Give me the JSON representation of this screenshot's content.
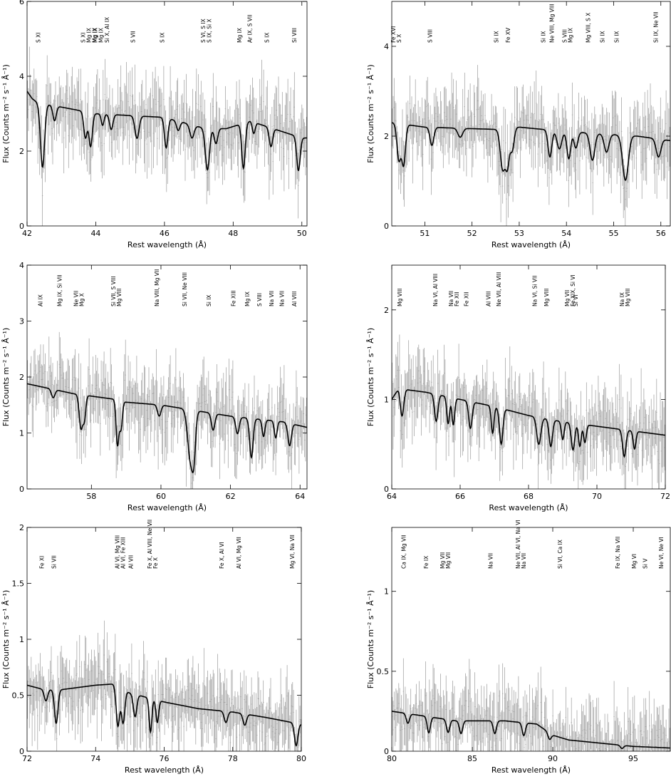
{
  "chart_data": [
    {
      "type": "line",
      "xlim": [
        42.0,
        50.15
      ],
      "ylim": [
        0,
        6
      ],
      "xticks": [
        42,
        44,
        46,
        48,
        50
      ],
      "yticks": [
        0,
        2,
        4,
        6
      ],
      "xlabel": "Rest wavelength (Å)",
      "ylabel": "Flux (Counts m⁻² s⁻¹ Å⁻¹)",
      "continuum": [
        [
          42.0,
          3.6
        ],
        [
          42.15,
          3.4
        ],
        [
          42.3,
          3.3
        ],
        [
          44.0,
          3.0
        ],
        [
          46.0,
          2.9
        ],
        [
          47.2,
          2.6
        ],
        [
          47.8,
          2.6
        ],
        [
          48.5,
          2.8
        ],
        [
          50.0,
          2.35
        ],
        [
          50.15,
          2.35
        ]
      ],
      "absorptions": [
        [
          42.45,
          1.7,
          0.06
        ],
        [
          42.8,
          0.4,
          0.05
        ],
        [
          43.7,
          0.7,
          0.05
        ],
        [
          43.85,
          0.9,
          0.05
        ],
        [
          44.2,
          0.3,
          0.04
        ],
        [
          44.45,
          0.4,
          0.05
        ],
        [
          45.2,
          0.6,
          0.06
        ],
        [
          46.05,
          0.8,
          0.05
        ],
        [
          46.4,
          0.25,
          0.05
        ],
        [
          46.8,
          0.35,
          0.06
        ],
        [
          47.25,
          1.1,
          0.06
        ],
        [
          47.5,
          0.4,
          0.05
        ],
        [
          48.3,
          1.2,
          0.05
        ],
        [
          48.6,
          0.3,
          0.04
        ],
        [
          49.1,
          0.5,
          0.05
        ],
        [
          49.9,
          0.9,
          0.05
        ]
      ],
      "noise_seed": 11,
      "data_point_count": 300,
      "labels": [
        {
          "x": 42.45,
          "lines": [
            "S XI"
          ]
        },
        {
          "x": 43.75,
          "lines": [
            "S XI"
          ]
        },
        {
          "x": 43.92,
          "lines": [
            "Mg IX",
            "Mg IX"
          ]
        },
        {
          "x": 44.1,
          "lines": [
            "Mg IX",
            "Mg IX"
          ]
        },
        {
          "x": 44.45,
          "lines": [
            "Si X, Al IX"
          ]
        },
        {
          "x": 45.2,
          "lines": [
            "S VII"
          ]
        },
        {
          "x": 46.05,
          "lines": [
            "S IX"
          ]
        },
        {
          "x": 47.25,
          "lines": [
            "S VI, S IX"
          ]
        },
        {
          "x": 47.42,
          "lines": [
            "S IX, Si X"
          ]
        },
        {
          "x": 48.3,
          "lines": [
            "Mg IX"
          ]
        },
        {
          "x": 48.6,
          "lines": [
            "Ar IX, S VII"
          ]
        },
        {
          "x": 49.1,
          "lines": [
            "S IX"
          ]
        },
        {
          "x": 49.9,
          "lines": [
            "Si VIII"
          ]
        }
      ]
    },
    {
      "type": "line",
      "xlim": [
        50.3,
        56.2
      ],
      "ylim": [
        0,
        5
      ],
      "xticks": [
        51,
        52,
        53,
        54,
        55,
        56
      ],
      "yticks": [
        0,
        2,
        4
      ],
      "xlabel": "Rest wavelength (Å)",
      "ylabel": "Flux (Counts m⁻² s⁻¹ Å⁻¹)",
      "continuum": [
        [
          50.3,
          2.3
        ],
        [
          51.0,
          2.2
        ],
        [
          52.5,
          2.15
        ],
        [
          53.0,
          2.2
        ],
        [
          54.0,
          2.1
        ],
        [
          55.5,
          2.0
        ],
        [
          56.2,
          1.9
        ]
      ],
      "absorptions": [
        [
          50.45,
          0.8,
          0.04
        ],
        [
          50.55,
          0.9,
          0.04
        ],
        [
          51.15,
          0.4,
          0.04
        ],
        [
          51.75,
          0.2,
          0.05
        ],
        [
          52.65,
          0.9,
          0.05
        ],
        [
          52.75,
          0.8,
          0.04
        ],
        [
          52.85,
          0.5,
          0.04
        ],
        [
          53.65,
          0.6,
          0.04
        ],
        [
          53.85,
          0.4,
          0.05
        ],
        [
          54.05,
          0.6,
          0.04
        ],
        [
          54.2,
          0.35,
          0.04
        ],
        [
          54.55,
          0.6,
          0.05
        ],
        [
          54.85,
          0.4,
          0.05
        ],
        [
          55.25,
          1.0,
          0.06
        ],
        [
          55.95,
          0.4,
          0.05
        ]
      ],
      "noise_seed": 23,
      "data_point_count": 300,
      "labels": [
        {
          "x": 50.42,
          "lines": [
            "Fe XVI",
            "S X"
          ]
        },
        {
          "x": 51.2,
          "lines": [
            "S VIII"
          ]
        },
        {
          "x": 52.6,
          "lines": [
            "Si IX"
          ]
        },
        {
          "x": 52.85,
          "lines": [
            "Fe XV"
          ]
        },
        {
          "x": 53.6,
          "lines": [
            "Si IX"
          ]
        },
        {
          "x": 53.78,
          "lines": [
            "Ne VIII, Mg VIII"
          ]
        },
        {
          "x": 54.05,
          "lines": [
            "S VIII",
            "Mg IX"
          ]
        },
        {
          "x": 54.55,
          "lines": [
            "Mg VIII, S X"
          ]
        },
        {
          "x": 54.85,
          "lines": [
            "Si IX"
          ]
        },
        {
          "x": 55.15,
          "lines": [
            "Si IX"
          ]
        },
        {
          "x": 55.98,
          "lines": [
            "Si IX, Ne VII"
          ]
        }
      ]
    },
    {
      "type": "line",
      "xlim": [
        56.15,
        64.2
      ],
      "ylim": [
        0,
        4
      ],
      "xticks": [
        58,
        60,
        62,
        64
      ],
      "yticks": [
        0,
        1,
        2,
        3,
        4
      ],
      "xlabel": "Rest wavelength (Å)",
      "ylabel": "Flux (Counts m⁻² s⁻¹ Å⁻¹)",
      "continuum": [
        [
          56.15,
          1.88
        ],
        [
          57.5,
          1.7
        ],
        [
          58.7,
          1.6
        ],
        [
          59.0,
          1.55
        ],
        [
          60.0,
          1.5
        ],
        [
          61.0,
          1.4
        ],
        [
          62.0,
          1.3
        ],
        [
          63.5,
          1.2
        ],
        [
          64.2,
          1.1
        ]
      ],
      "absorptions": [
        [
          56.9,
          0.15,
          0.05
        ],
        [
          57.7,
          0.6,
          0.05
        ],
        [
          57.8,
          0.4,
          0.04
        ],
        [
          58.75,
          0.8,
          0.04
        ],
        [
          58.85,
          0.5,
          0.04
        ],
        [
          59.95,
          0.2,
          0.05
        ],
        [
          60.85,
          0.9,
          0.08
        ],
        [
          60.95,
          0.6,
          0.05
        ],
        [
          61.5,
          0.3,
          0.05
        ],
        [
          62.2,
          0.3,
          0.05
        ],
        [
          62.6,
          0.7,
          0.05
        ],
        [
          62.95,
          0.3,
          0.04
        ],
        [
          63.3,
          0.3,
          0.04
        ],
        [
          63.7,
          0.4,
          0.05
        ]
      ],
      "noise_seed": 37,
      "data_point_count": 300,
      "labels": [
        {
          "x": 56.65,
          "lines": [
            "Al IX"
          ]
        },
        {
          "x": 57.2,
          "lines": [
            "Mg IX, Si VII"
          ]
        },
        {
          "x": 57.68,
          "lines": [
            "Ne VII",
            "Mg X"
          ]
        },
        {
          "x": 58.75,
          "lines": [
            "Si VII, S VIII",
            "Mg VIII"
          ]
        },
        {
          "x": 60.0,
          "lines": [
            "Na VIII, Mg VII"
          ]
        },
        {
          "x": 60.8,
          "lines": [
            "Si VII, Ne VIII"
          ]
        },
        {
          "x": 61.5,
          "lines": [
            "Si IX"
          ]
        },
        {
          "x": 62.2,
          "lines": [
            "Fe XIII"
          ]
        },
        {
          "x": 62.6,
          "lines": [
            "Mg IX"
          ]
        },
        {
          "x": 62.95,
          "lines": [
            "S VIII"
          ]
        },
        {
          "x": 63.3,
          "lines": [
            "Na VII"
          ]
        },
        {
          "x": 63.6,
          "lines": [
            "Na VII"
          ]
        },
        {
          "x": 63.95,
          "lines": [
            "Al VIII"
          ]
        }
      ]
    },
    {
      "type": "line",
      "xlim": [
        64.0,
        72.0
      ],
      "ylim": [
        0,
        2.5
      ],
      "xticks": [
        64,
        66,
        68,
        70,
        72
      ],
      "yticks": [
        0,
        1,
        2
      ],
      "xlabel": "Rest wavelength (Å)",
      "ylabel": "Flux (Counts m⁻² s⁻¹ Å⁻¹)",
      "continuum": [
        [
          64.0,
          1.0
        ],
        [
          64.2,
          1.12
        ],
        [
          65.0,
          1.08
        ],
        [
          66.0,
          1.0
        ],
        [
          67.0,
          0.92
        ],
        [
          68.0,
          0.82
        ],
        [
          69.0,
          0.75
        ],
        [
          70.0,
          0.7
        ],
        [
          71.0,
          0.65
        ],
        [
          72.0,
          0.6
        ]
      ],
      "absorptions": [
        [
          64.3,
          0.3,
          0.05
        ],
        [
          65.3,
          0.3,
          0.05
        ],
        [
          65.65,
          0.3,
          0.04
        ],
        [
          65.8,
          0.3,
          0.04
        ],
        [
          66.3,
          0.3,
          0.05
        ],
        [
          66.95,
          0.3,
          0.04
        ],
        [
          67.2,
          0.4,
          0.05
        ],
        [
          68.3,
          0.3,
          0.06
        ],
        [
          68.65,
          0.3,
          0.05
        ],
        [
          69.0,
          0.2,
          0.04
        ],
        [
          69.3,
          0.3,
          0.05
        ],
        [
          69.5,
          0.25,
          0.04
        ],
        [
          69.65,
          0.2,
          0.04
        ],
        [
          70.8,
          0.3,
          0.05
        ],
        [
          71.1,
          0.2,
          0.04
        ]
      ],
      "noise_seed": 41,
      "data_point_count": 300,
      "labels": [
        {
          "x": 64.35,
          "lines": [
            "Mg VIII"
          ]
        },
        {
          "x": 65.4,
          "lines": [
            "Na VI, Al VIII"
          ]
        },
        {
          "x": 65.85,
          "lines": [
            "Na VII",
            "Fe XII"
          ]
        },
        {
          "x": 66.3,
          "lines": [
            "Fe XII"
          ]
        },
        {
          "x": 66.95,
          "lines": [
            "Al VIII"
          ]
        },
        {
          "x": 67.25,
          "lines": [
            "Ne VII, Al VIII"
          ]
        },
        {
          "x": 68.3,
          "lines": [
            "Na VI, Si VII"
          ]
        },
        {
          "x": 68.65,
          "lines": [
            "Mg VIII"
          ]
        },
        {
          "x": 69.25,
          "lines": [
            "Mg VII",
            "Fe XIX, Si VI"
          ]
        },
        {
          "x": 69.5,
          "lines": [
            "Si VI"
          ]
        },
        {
          "x": 70.85,
          "lines": [
            "Na IX",
            "Mg VIII"
          ]
        }
      ]
    },
    {
      "type": "line",
      "xlim": [
        72.0,
        80.0
      ],
      "ylim": [
        0,
        2
      ],
      "xticks": [
        72,
        74,
        76,
        78,
        80
      ],
      "yticks": [
        0,
        0.5,
        1,
        1.5,
        2
      ],
      "xtick_labels": [
        "72",
        "74",
        "76",
        "78",
        "80"
      ],
      "ytick_labels": [
        "0",
        "0.5",
        "1",
        "1.5",
        "2"
      ],
      "xlabel": "Rest wavelength (Å)",
      "ylabel": "Flux (Counts m⁻² s⁻¹ Å⁻¹)",
      "continuum": [
        [
          72.0,
          0.59
        ],
        [
          72.5,
          0.55
        ],
        [
          73.0,
          0.55
        ],
        [
          74.0,
          0.59
        ],
        [
          74.5,
          0.6
        ],
        [
          75.0,
          0.52
        ],
        [
          75.5,
          0.48
        ],
        [
          76.0,
          0.44
        ],
        [
          77.0,
          0.38
        ],
        [
          78.0,
          0.35
        ],
        [
          79.0,
          0.3
        ],
        [
          80.0,
          0.24
        ]
      ],
      "absorptions": [
        [
          72.55,
          0.1,
          0.05
        ],
        [
          72.85,
          0.3,
          0.05
        ],
        [
          74.65,
          0.35,
          0.05
        ],
        [
          74.8,
          0.3,
          0.05
        ],
        [
          75.15,
          0.2,
          0.05
        ],
        [
          75.6,
          0.3,
          0.04
        ],
        [
          75.8,
          0.2,
          0.04
        ],
        [
          77.8,
          0.1,
          0.05
        ],
        [
          78.35,
          0.1,
          0.05
        ],
        [
          79.85,
          0.2,
          0.05
        ]
      ],
      "noise_seed": 53,
      "data_point_count": 300,
      "labels": [
        {
          "x": 72.55,
          "lines": [
            "Fe XI"
          ]
        },
        {
          "x": 72.9,
          "lines": [
            "Si VII"
          ]
        },
        {
          "x": 74.75,
          "lines": [
            "Al VI, Mg VIII",
            "Al VI, Fe XIII"
          ]
        },
        {
          "x": 75.15,
          "lines": [
            "Al VII"
          ]
        },
        {
          "x": 75.7,
          "lines": [
            "Fe X, Al VIII, Ne VII",
            "Fe X"
          ]
        },
        {
          "x": 77.8,
          "lines": [
            "Fe X, Al VI"
          ]
        },
        {
          "x": 78.3,
          "lines": [
            "Al VI, Mg VII"
          ]
        },
        {
          "x": 79.85,
          "lines": [
            "Mg VI, Na VII"
          ]
        }
      ]
    },
    {
      "type": "line",
      "xlim": [
        80.0,
        97.3
      ],
      "ylim": [
        0,
        1.4
      ],
      "xticks": [
        80,
        85,
        90,
        95
      ],
      "yticks": [
        0,
        0.5,
        1
      ],
      "xtick_labels": [
        "80",
        "85",
        "90",
        "95"
      ],
      "ytick_labels": [
        "0",
        "0.5",
        "1"
      ],
      "xlabel": "Rest wavelength (Å)",
      "ylabel": "Flux (Counts m⁻² s⁻¹ Å⁻¹)",
      "continuum": [
        [
          80.0,
          0.25
        ],
        [
          82.0,
          0.22
        ],
        [
          84.0,
          0.19
        ],
        [
          87.0,
          0.19
        ],
        [
          89.0,
          0.17
        ],
        [
          90.0,
          0.1
        ],
        [
          91.0,
          0.07
        ],
        [
          93.0,
          0.05
        ],
        [
          95.0,
          0.03
        ],
        [
          97.3,
          0.02
        ]
      ],
      "absorptions": [
        [
          81.0,
          0.06,
          0.1
        ],
        [
          82.3,
          0.1,
          0.1
        ],
        [
          83.5,
          0.08,
          0.1
        ],
        [
          84.3,
          0.08,
          0.1
        ],
        [
          86.4,
          0.08,
          0.1
        ],
        [
          88.2,
          0.08,
          0.1
        ],
        [
          89.8,
          0.04,
          0.1
        ],
        [
          94.3,
          0.02,
          0.1
        ]
      ],
      "noise_seed": 67,
      "data_point_count": 300,
      "labels": [
        {
          "x": 81.0,
          "lines": [
            "Ca IX, Mg VII"
          ]
        },
        {
          "x": 82.4,
          "lines": [
            "Fe IX"
          ]
        },
        {
          "x": 83.4,
          "lines": [
            "Mg VII",
            "Mg VII"
          ]
        },
        {
          "x": 86.4,
          "lines": [
            "Na VII"
          ]
        },
        {
          "x": 88.1,
          "lines": [
            "Ne VII, Al VI, Na VI",
            "Na VII"
          ]
        },
        {
          "x": 90.7,
          "lines": [
            "Si VI, Ca IX"
          ]
        },
        {
          "x": 94.3,
          "lines": [
            "Fe IX, Na VII"
          ]
        },
        {
          "x": 95.3,
          "lines": [
            "Mg VI"
          ]
        },
        {
          "x": 96.0,
          "lines": [
            "Si V"
          ]
        },
        {
          "x": 97.0,
          "lines": [
            "Ne VI, Ne VI"
          ]
        }
      ]
    }
  ]
}
